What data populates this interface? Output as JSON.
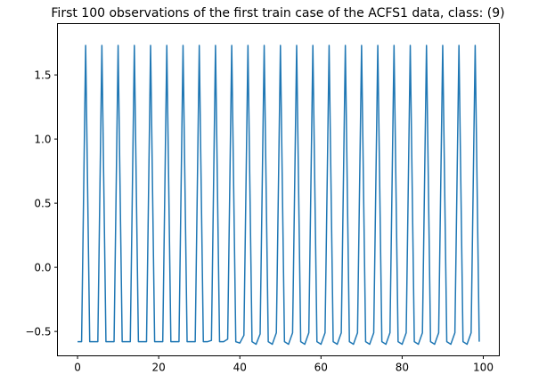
{
  "chart_data": {
    "type": "line",
    "title": "First 100 observations of the first train case of the ACFS1 data, class: (9)",
    "xlabel": "",
    "ylabel": "",
    "xlim": [
      -4.95,
      103.95
    ],
    "ylim": [
      -0.69,
      1.9
    ],
    "xticks": [
      0,
      20,
      40,
      60,
      80,
      100
    ],
    "yticks": [
      -0.5,
      0.0,
      0.5,
      1.0,
      1.5
    ],
    "ytick_labels": [
      "−0.5",
      "0.0",
      "0.5",
      "1.0",
      "1.5"
    ],
    "grid": false,
    "color": "#1f77b4",
    "series": [
      {
        "values": [
          -0.58,
          -0.58,
          1.73,
          -0.58,
          -0.58,
          -0.58,
          1.73,
          -0.58,
          -0.58,
          -0.58,
          1.73,
          -0.58,
          -0.58,
          -0.58,
          1.73,
          -0.58,
          -0.58,
          -0.58,
          1.73,
          -0.58,
          -0.58,
          -0.58,
          1.73,
          -0.58,
          -0.58,
          -0.58,
          1.73,
          -0.58,
          -0.58,
          -0.58,
          1.73,
          -0.58,
          -0.58,
          -0.57,
          1.73,
          -0.58,
          -0.58,
          -0.56,
          1.73,
          -0.58,
          -0.59,
          -0.53,
          1.73,
          -0.58,
          -0.6,
          -0.52,
          1.73,
          -0.58,
          -0.6,
          -0.51,
          1.73,
          -0.58,
          -0.6,
          -0.51,
          1.73,
          -0.58,
          -0.6,
          -0.51,
          1.73,
          -0.58,
          -0.6,
          -0.51,
          1.73,
          -0.58,
          -0.6,
          -0.51,
          1.73,
          -0.58,
          -0.6,
          -0.51,
          1.73,
          -0.58,
          -0.6,
          -0.51,
          1.73,
          -0.58,
          -0.6,
          -0.51,
          1.73,
          -0.58,
          -0.6,
          -0.51,
          1.73,
          -0.58,
          -0.6,
          -0.51,
          1.73,
          -0.58,
          -0.6,
          -0.51,
          1.73,
          -0.58,
          -0.6,
          -0.51,
          1.73,
          -0.58,
          -0.6,
          -0.51,
          1.73,
          -0.58
        ]
      }
    ]
  }
}
